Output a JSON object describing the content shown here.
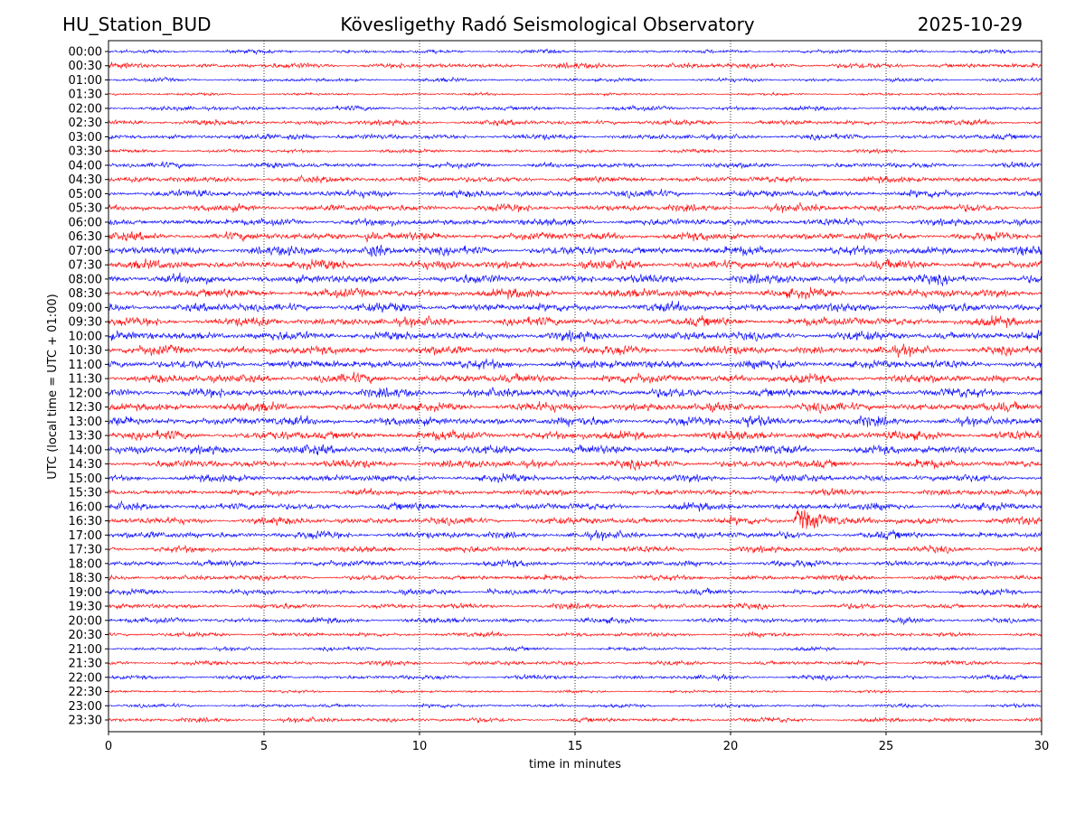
{
  "header": {
    "station": "HU_Station_BUD",
    "observatory": "Kövesligethy Radó Seismological Observatory",
    "date": "2025-10-29"
  },
  "chart_data": {
    "type": "line",
    "subtype": "helicorder",
    "xlabel": "time in minutes",
    "ylabel": "UTC (local time = UTC + 01:00)",
    "xlim": [
      0,
      30
    ],
    "xticks": [
      0,
      5,
      10,
      15,
      20,
      25,
      30
    ],
    "grid": "vertical dotted lines at x ticks",
    "colors": [
      "#0000ff",
      "#ff0000"
    ],
    "rows": [
      {
        "label": "00:00",
        "relative_amplitude": 2
      },
      {
        "label": "00:30",
        "relative_amplitude": 3
      },
      {
        "label": "01:00",
        "relative_amplitude": 2
      },
      {
        "label": "01:30",
        "relative_amplitude": 1.5
      },
      {
        "label": "02:00",
        "relative_amplitude": 2.5
      },
      {
        "label": "02:30",
        "relative_amplitude": 3
      },
      {
        "label": "03:00",
        "relative_amplitude": 3
      },
      {
        "label": "03:30",
        "relative_amplitude": 2
      },
      {
        "label": "04:00",
        "relative_amplitude": 3
      },
      {
        "label": "04:30",
        "relative_amplitude": 3.5
      },
      {
        "label": "05:00",
        "relative_amplitude": 4
      },
      {
        "label": "05:30",
        "relative_amplitude": 4
      },
      {
        "label": "06:00",
        "relative_amplitude": 4
      },
      {
        "label": "06:30",
        "relative_amplitude": 4.5
      },
      {
        "label": "07:00",
        "relative_amplitude": 5
      },
      {
        "label": "07:30",
        "relative_amplitude": 5
      },
      {
        "label": "08:00",
        "relative_amplitude": 5
      },
      {
        "label": "08:30",
        "relative_amplitude": 5
      },
      {
        "label": "09:00",
        "relative_amplitude": 5
      },
      {
        "label": "09:30",
        "relative_amplitude": 5
      },
      {
        "label": "10:00",
        "relative_amplitude": 5
      },
      {
        "label": "10:30",
        "relative_amplitude": 5
      },
      {
        "label": "11:00",
        "relative_amplitude": 5
      },
      {
        "label": "11:30",
        "relative_amplitude": 5
      },
      {
        "label": "12:00",
        "relative_amplitude": 5
      },
      {
        "label": "12:30",
        "relative_amplitude": 5
      },
      {
        "label": "13:00",
        "relative_amplitude": 5
      },
      {
        "label": "13:30",
        "relative_amplitude": 5
      },
      {
        "label": "14:00",
        "relative_amplitude": 5
      },
      {
        "label": "14:30",
        "relative_amplitude": 4.5
      },
      {
        "label": "15:00",
        "relative_amplitude": 4
      },
      {
        "label": "15:30",
        "relative_amplitude": 3.5
      },
      {
        "label": "16:00",
        "relative_amplitude": 4
      },
      {
        "label": "16:30",
        "relative_amplitude": 4
      },
      {
        "label": "17:00",
        "relative_amplitude": 4
      },
      {
        "label": "17:30",
        "relative_amplitude": 3.5
      },
      {
        "label": "18:00",
        "relative_amplitude": 3.5
      },
      {
        "label": "18:30",
        "relative_amplitude": 3
      },
      {
        "label": "19:00",
        "relative_amplitude": 3
      },
      {
        "label": "19:30",
        "relative_amplitude": 3
      },
      {
        "label": "20:00",
        "relative_amplitude": 3
      },
      {
        "label": "20:30",
        "relative_amplitude": 2.5
      },
      {
        "label": "21:00",
        "relative_amplitude": 2
      },
      {
        "label": "21:30",
        "relative_amplitude": 2.5
      },
      {
        "label": "22:00",
        "relative_amplitude": 2.5
      },
      {
        "label": "22:30",
        "relative_amplitude": 1.5
      },
      {
        "label": "23:00",
        "relative_amplitude": 2
      },
      {
        "label": "23:30",
        "relative_amplitude": 2.5
      }
    ],
    "events": [
      {
        "row": "03:00",
        "minute": 5.8,
        "duration": 1.0,
        "relative_amplitude": 5
      },
      {
        "row": "06:30",
        "minute": 8.3,
        "duration": 0.6,
        "relative_amplitude": 8
      },
      {
        "row": "07:00",
        "minute": 8.4,
        "duration": 0.8,
        "relative_amplitude": 12
      },
      {
        "row": "11:30",
        "minute": 1.5,
        "duration": 0.6,
        "relative_amplitude": 8
      },
      {
        "row": "13:00",
        "minute": 20.4,
        "duration": 1.8,
        "relative_amplitude": 9
      },
      {
        "row": "16:30",
        "minute": 22.2,
        "duration": 1.6,
        "relative_amplitude": 14
      },
      {
        "row": "19:00",
        "minute": 12.2,
        "duration": 0.5,
        "relative_amplitude": 5
      },
      {
        "row": "19:00",
        "minute": 22.8,
        "duration": 1.2,
        "relative_amplitude": 4
      }
    ]
  }
}
